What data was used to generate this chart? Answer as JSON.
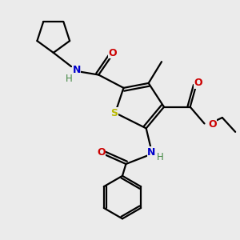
{
  "bg_color": "#ebebeb",
  "bond_color": "#000000",
  "S_color": "#b8b800",
  "N_color": "#0000cc",
  "O_color": "#cc0000",
  "line_width": 1.6,
  "figsize": [
    3.0,
    3.0
  ],
  "dpi": 100,
  "xlim": [
    0,
    10
  ],
  "ylim": [
    0,
    10
  ]
}
